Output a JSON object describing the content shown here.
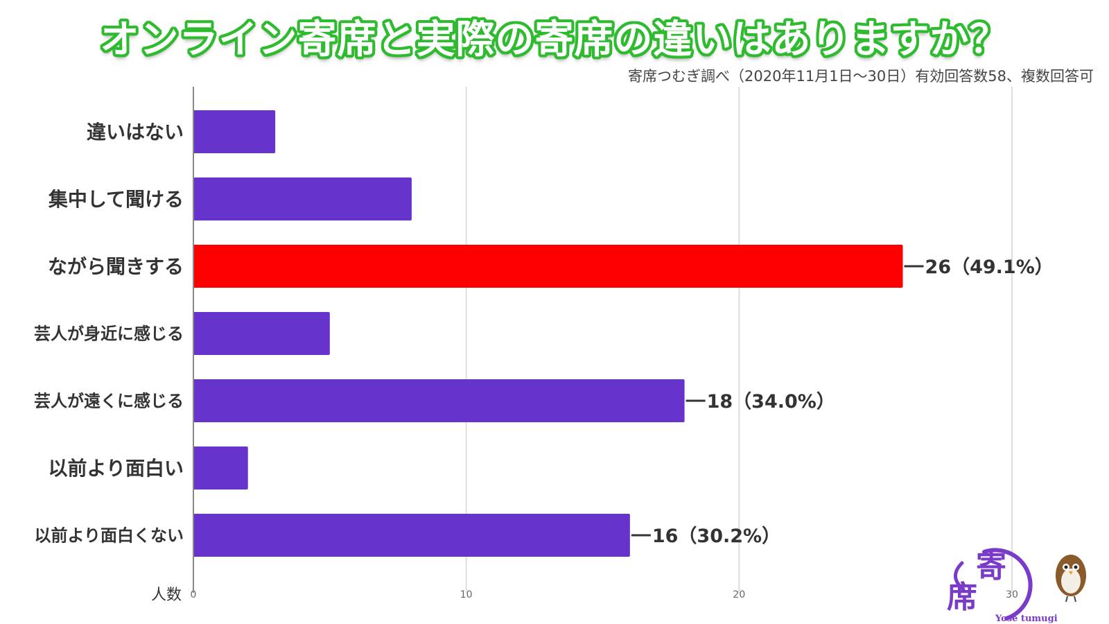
{
  "title": "オンライン寄席と実際の寄席の違いはありますか？",
  "subtitle": "寄席つむぎ調べ（2020年11月1日～30日）有効回答数58、複数回答可",
  "chart_data": {
    "type": "bar",
    "orientation": "horizontal",
    "categories": [
      "違いはない",
      "集中して聞ける",
      "ながら聞きする",
      "芸人が身近に感じる",
      "芸人が遠くに感じる",
      "以前より面白い",
      "以前より面白くない"
    ],
    "values": [
      3,
      8,
      26,
      5,
      18,
      2,
      16
    ],
    "bar_colors": [
      "#6633cc",
      "#6633cc",
      "#ff0000",
      "#6633cc",
      "#6633cc",
      "#6633cc",
      "#6633cc"
    ],
    "data_labels": [
      null,
      null,
      "26（49.1%）",
      null,
      "18（34.0%）",
      null,
      "16（30.2%）"
    ],
    "xlabel": "人数",
    "xticks": [
      0,
      10,
      20,
      30
    ],
    "xlim": [
      0,
      30
    ],
    "grid": true
  },
  "logo": {
    "kanji_top": "寄",
    "kanji_bottom": "席",
    "text": "Yose tumugi",
    "purple": "#7a3cc8",
    "icon": "sparrow-mascot-icon"
  }
}
